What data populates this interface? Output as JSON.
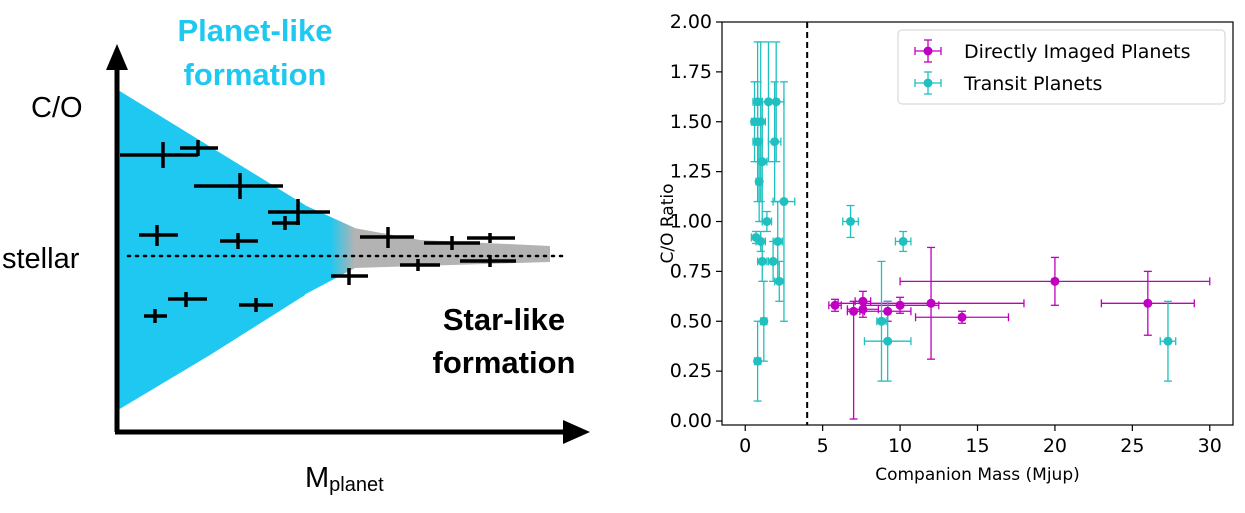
{
  "schematic": {
    "title_line1": "Planet-like",
    "title_line2": "formation",
    "y_label": "C/O",
    "stellar_label": "stellar",
    "star_like_line1": "Star-like",
    "star_like_line2": "formation",
    "x_label_main": "M",
    "x_label_sub": "planet",
    "colors": {
      "planet_wedge": "#1ec8f0",
      "star_wedge": "#b3b3b3",
      "title": "#1ec8f0"
    }
  },
  "chart_data": {
    "type": "scatter",
    "xlabel": "Companion Mass (Mjup)",
    "ylabel": "C/O Ratio",
    "xlim": [
      -1.5,
      31.5
    ],
    "ylim": [
      -0.02,
      2.0
    ],
    "xticks": [
      "0",
      "5",
      "10",
      "15",
      "20",
      "25",
      "30"
    ],
    "yticks": [
      "0.00",
      "0.25",
      "0.50",
      "0.75",
      "1.00",
      "1.25",
      "1.50",
      "1.75",
      "2.00"
    ],
    "vline_x": 4,
    "legend_position": "top-right",
    "series": [
      {
        "name": "Directly Imaged Planets",
        "color": "#c000c0",
        "points": [
          {
            "x": 5.8,
            "y": 0.58,
            "xerr": 0.4,
            "yerr": 0.03
          },
          {
            "x": 7.0,
            "y": 0.55,
            "xerr": 0.4,
            "yerr_lo": 0.54,
            "yerr_hi": 0.05
          },
          {
            "x": 7.6,
            "y": 0.6,
            "xerr": 0.5,
            "yerr": 0.05
          },
          {
            "x": 7.6,
            "y": 0.56,
            "xerr": 1.0,
            "yerr": 0.04
          },
          {
            "x": 9.2,
            "y": 0.55,
            "xerr": 1.5,
            "yerr": 0.05
          },
          {
            "x": 10.0,
            "y": 0.58,
            "xerr": 2.5,
            "yerr": 0.04
          },
          {
            "x": 12.0,
            "y": 0.59,
            "xerr": 6.0,
            "yerr": 0.28
          },
          {
            "x": 14.0,
            "y": 0.52,
            "xerr": 3.0,
            "yerr": 0.03
          },
          {
            "x": 20.0,
            "y": 0.7,
            "xerr_lo": 10.0,
            "xerr_hi": 10.0,
            "yerr": 0.12
          },
          {
            "x": 26.0,
            "y": 0.59,
            "xerr": 3.0,
            "yerr": 0.16
          }
        ]
      },
      {
        "name": "Transit Planets",
        "color": "#20c0c0",
        "points": [
          {
            "x": 0.6,
            "y": 1.5,
            "xerr": 0.2,
            "yerr": 0.2
          },
          {
            "x": 0.8,
            "y": 1.6,
            "xerr": 0.3,
            "yerr": 0.3
          },
          {
            "x": 0.8,
            "y": 1.4,
            "xerr": 0.3,
            "yerr": 0.3
          },
          {
            "x": 0.9,
            "y": 1.2,
            "xerr": 0.2,
            "yerr": 0.2
          },
          {
            "x": 0.8,
            "y": 0.3,
            "xerr": 0.2,
            "yerr": 0.2
          },
          {
            "x": 0.7,
            "y": 0.92,
            "xerr": 0.3,
            "yerr": 0.03
          },
          {
            "x": 1.0,
            "y": 0.9,
            "xerr": 0.3,
            "yerr": 0.05
          },
          {
            "x": 1.0,
            "y": 1.5,
            "xerr": 0.3,
            "yerr": 0.4
          },
          {
            "x": 1.1,
            "y": 1.3,
            "xerr": 0.3,
            "yerr": 0.3
          },
          {
            "x": 1.1,
            "y": 0.8,
            "xerr": 0.3,
            "yerr": 0.1
          },
          {
            "x": 1.2,
            "y": 0.5,
            "xerr": 0.2,
            "yerr": 0.2
          },
          {
            "x": 1.4,
            "y": 1.0,
            "xerr": 0.3,
            "yerr": 0.05
          },
          {
            "x": 1.5,
            "y": 1.6,
            "xerr": 0.4,
            "yerr": 0.3
          },
          {
            "x": 1.8,
            "y": 0.8,
            "xerr": 0.3,
            "yerr": 0.1
          },
          {
            "x": 1.9,
            "y": 1.4,
            "xerr": 0.4,
            "yerr": 0.3
          },
          {
            "x": 2.0,
            "y": 1.6,
            "xerr": 0.5,
            "yerr": 0.3
          },
          {
            "x": 2.1,
            "y": 0.9,
            "xerr": 0.3,
            "yerr": 0.2
          },
          {
            "x": 2.2,
            "y": 0.7,
            "xerr": 0.3,
            "yerr": 0.1
          },
          {
            "x": 2.5,
            "y": 1.1,
            "xerr": 0.7,
            "yerr": 0.6
          },
          {
            "x": 6.8,
            "y": 1.0,
            "xerr": 0.5,
            "yerr": 0.08
          },
          {
            "x": 8.8,
            "y": 0.5,
            "xerr": 0.3,
            "yerr": 0.3
          },
          {
            "x": 9.2,
            "y": 0.4,
            "xerr": 1.5,
            "yerr": 0.2
          },
          {
            "x": 10.2,
            "y": 0.9,
            "xerr": 0.5,
            "yerr": 0.05
          },
          {
            "x": 27.3,
            "y": 0.4,
            "xerr": 0.5,
            "yerr": 0.2
          }
        ]
      }
    ]
  }
}
